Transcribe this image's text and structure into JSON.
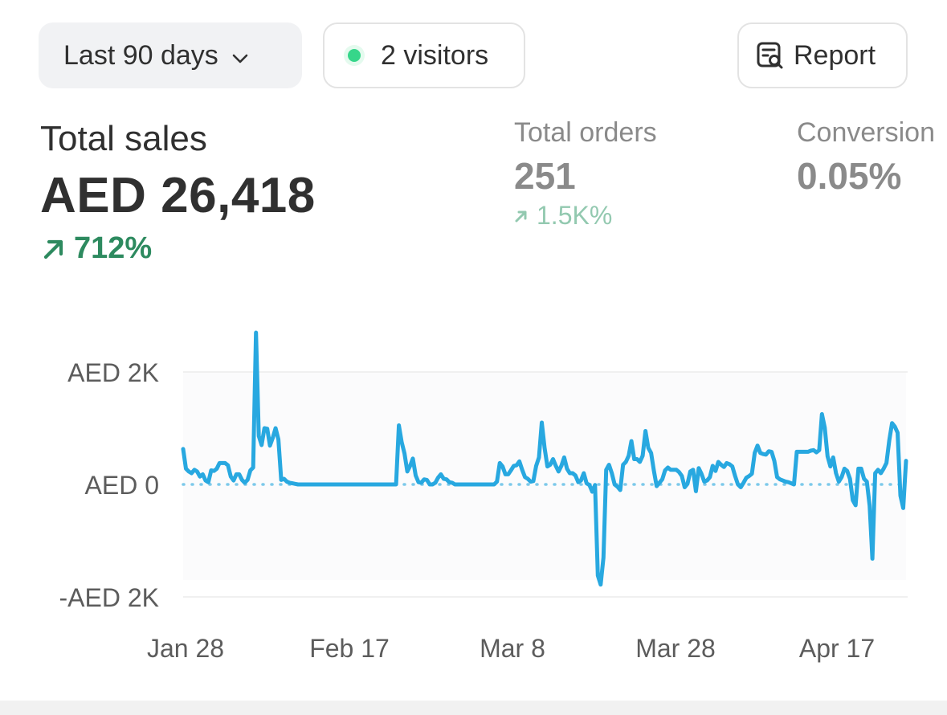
{
  "filters": {
    "date_range_label": "Last 90 days",
    "visitors_label": "2 visitors",
    "report_label": "Report"
  },
  "metrics": {
    "total_sales": {
      "label": "Total sales",
      "value": "AED 26,418",
      "change": "712%"
    },
    "total_orders": {
      "label": "Total orders",
      "value": "251",
      "change": "1.5K%"
    },
    "conversion": {
      "label": "Conversion",
      "value": "0.05%"
    }
  },
  "colors": {
    "series": "#28a8e0",
    "comparison": "#7cc9ea",
    "positive": "#2d8a5f"
  },
  "chart_data": {
    "type": "line",
    "y_ticks": [
      "AED 2K",
      "AED 0",
      "-AED 2K"
    ],
    "y_tick_values": [
      2000,
      0,
      -2000
    ],
    "x_ticks": [
      "Jan 28",
      "Feb 17",
      "Mar 8",
      "Mar 28",
      "Apr 17"
    ],
    "ylim": [
      -2000,
      2700
    ],
    "grid": true,
    "series": [
      {
        "values": [
          630,
          280,
          230,
          200,
          260,
          230,
          140,
          180,
          70,
          40,
          250,
          240,
          280,
          380,
          380,
          380,
          340,
          140,
          70,
          180,
          180,
          80,
          30,
          80,
          250,
          300,
          2700,
          860,
          700,
          1000,
          990,
          690,
          830,
          1000,
          800,
          80,
          100,
          50,
          30,
          20,
          10,
          0,
          0,
          0,
          0,
          0,
          0,
          0,
          0,
          0,
          0,
          0,
          0,
          0,
          0,
          0,
          0,
          0,
          0,
          0,
          0,
          0,
          0,
          0,
          0,
          0,
          0,
          0,
          0,
          0,
          0,
          0,
          0,
          0,
          0,
          0,
          0,
          1050,
          750,
          550,
          230,
          330,
          460,
          160,
          40,
          30,
          90,
          80,
          0,
          0,
          30,
          120,
          180,
          100,
          90,
          40,
          30,
          0,
          0,
          0,
          0,
          0,
          0,
          0,
          0,
          0,
          0,
          0,
          0,
          0,
          0,
          0,
          50,
          380,
          320,
          180,
          180,
          250,
          330,
          340,
          410,
          260,
          130,
          100,
          50,
          60,
          330,
          480,
          1100,
          650,
          320,
          350,
          450,
          330,
          230,
          330,
          480,
          280,
          200,
          200,
          160,
          40,
          70,
          200,
          20,
          -10,
          -130,
          -10,
          -1620,
          -1780,
          -1300,
          260,
          350,
          200,
          0,
          -40,
          -100,
          350,
          400,
          510,
          770,
          450,
          450,
          400,
          510,
          950,
          650,
          560,
          250,
          -30,
          30,
          90,
          250,
          300,
          260,
          260,
          260,
          220,
          150,
          -50,
          10,
          230,
          260,
          -120,
          290,
          190,
          50,
          70,
          130,
          330,
          240,
          400,
          350,
          310,
          380,
          360,
          320,
          150,
          0,
          -50,
          30,
          120,
          150,
          190,
          560,
          690,
          560,
          540,
          530,
          590,
          580,
          420,
          130,
          90,
          70,
          50,
          40,
          20,
          0,
          580,
          580,
          580,
          580,
          580,
          600,
          610,
          570,
          610,
          1250,
          1010,
          500,
          320,
          480,
          200,
          50,
          130,
          280,
          240,
          100,
          -280,
          -370,
          280,
          280,
          100,
          50,
          -380,
          -1320,
          200,
          260,
          200,
          280,
          380,
          780,
          1090,
          1030,
          920,
          -200,
          -420,
          420
        ]
      }
    ]
  }
}
